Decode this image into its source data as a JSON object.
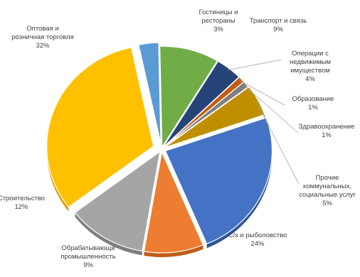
{
  "chart_data": {
    "type": "pie",
    "title": "",
    "legend": "none",
    "slices": [
      {
        "label_lines": [
          "Гостиницы и",
          "рестораны"
        ],
        "value_text": "3%",
        "value": 3,
        "color": "#5b9bd5",
        "dark": "#3f7fbf"
      },
      {
        "label_lines": [
          "Транспорт и связь"
        ],
        "value_text": "9%",
        "value": 9,
        "color": "#70ad47",
        "dark": "#4f8a2e"
      },
      {
        "label_lines": [
          "Операции с",
          "недвижимым",
          "имуществом"
        ],
        "value_text": "4%",
        "value": 4,
        "color": "#264478",
        "dark": "#172d52"
      },
      {
        "label_lines": [
          "Образование"
        ],
        "value_text": "1%",
        "value": 1,
        "color": "#c55a11",
        "dark": "#8f3f08"
      },
      {
        "label_lines": [
          "Здравоохранение"
        ],
        "value_text": "1%",
        "value": 1,
        "color": "#7f7f7f",
        "dark": "#5a5a5a"
      },
      {
        "label_lines": [
          "Прочие",
          "коммунальных,",
          "социальные услуг"
        ],
        "value_text": "5%",
        "value": 5,
        "color": "#bf8f00",
        "dark": "#8a6600"
      },
      {
        "label_lines": [
          "С/х и рыболовство"
        ],
        "value_text": "24%",
        "value": 24,
        "color": "#4472c4",
        "dark": "#2f559a"
      },
      {
        "label_lines": [
          "Обрабатывающи",
          "промышленность"
        ],
        "value_text": "9%",
        "value": 9,
        "color": "#ed7d31",
        "dark": "#c05d17"
      },
      {
        "label_lines": [
          "Строительство"
        ],
        "value_text": "12%",
        "value": 12,
        "color": "#a5a5a5",
        "dark": "#7e7e7e"
      },
      {
        "label_lines": [
          "Оптовая и",
          "розничная торговля"
        ],
        "value_text": "32%",
        "value": 32,
        "color": "#ffc000",
        "dark": "#d49e00"
      }
    ]
  }
}
